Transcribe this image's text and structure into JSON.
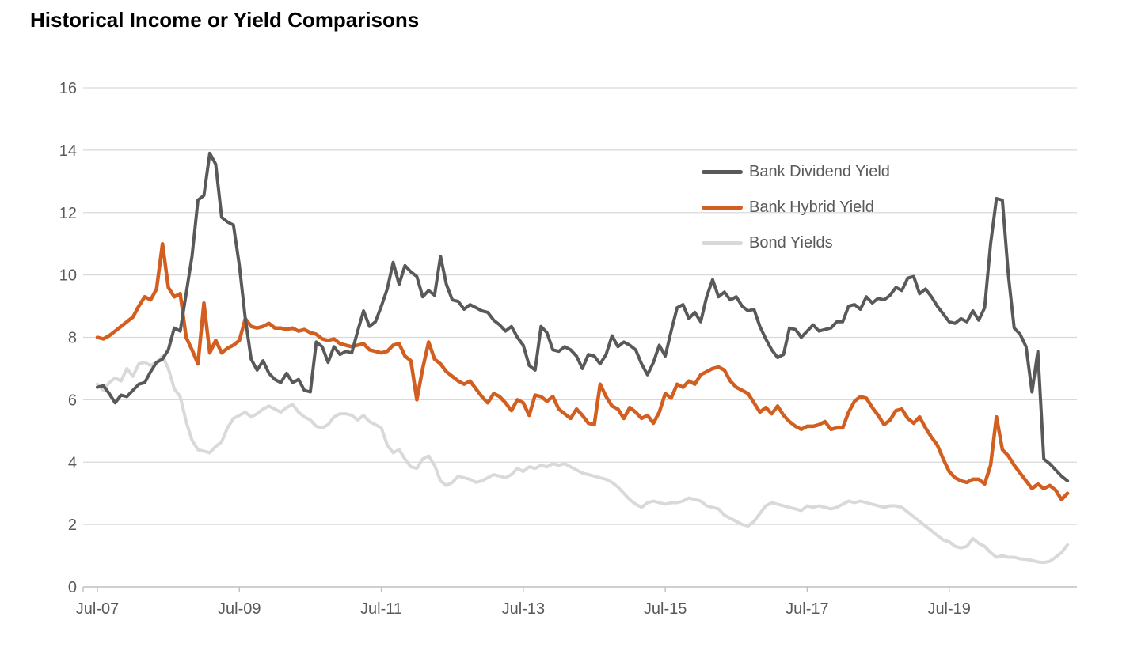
{
  "title": "Historical Income or Yield Comparisons",
  "chart_data": {
    "type": "line",
    "title": "Historical Income or Yield Comparisons",
    "xlabel": "",
    "ylabel": "",
    "x_axis": {
      "tick_labels": [
        "Jul-07",
        "Jul-09",
        "Jul-11",
        "Jul-13",
        "Jul-15",
        "Jul-17",
        "Jul-19"
      ],
      "start": "Jul-2007",
      "end": "Mar-2021",
      "frequency": "monthly"
    },
    "y_axis": {
      "min": 0,
      "max": 16,
      "tick_step": 2,
      "tick_labels": [
        "0",
        "2",
        "4",
        "6",
        "8",
        "10",
        "12",
        "14",
        "16"
      ]
    },
    "grid": "horizontal",
    "legend_position": "upper-right",
    "series": [
      {
        "name": "Bank Dividend Yield",
        "color": "#595959",
        "values": [
          6.4,
          6.45,
          6.2,
          5.9,
          6.15,
          6.1,
          6.3,
          6.5,
          6.55,
          6.9,
          7.2,
          7.3,
          7.6,
          8.3,
          8.2,
          9.4,
          10.6,
          12.4,
          12.55,
          13.9,
          13.55,
          11.85,
          11.7,
          11.6,
          10.3,
          8.6,
          7.3,
          6.95,
          7.25,
          6.85,
          6.65,
          6.55,
          6.85,
          6.55,
          6.65,
          6.3,
          6.25,
          7.85,
          7.7,
          7.2,
          7.7,
          7.45,
          7.55,
          7.5,
          8.2,
          8.85,
          8.35,
          8.5,
          9.0,
          9.55,
          10.4,
          9.7,
          10.3,
          10.1,
          9.95,
          9.3,
          9.5,
          9.35,
          10.6,
          9.7,
          9.2,
          9.15,
          8.9,
          9.05,
          8.95,
          8.85,
          8.8,
          8.55,
          8.4,
          8.2,
          8.35,
          8.0,
          7.75,
          7.1,
          6.95,
          8.35,
          8.15,
          7.6,
          7.55,
          7.7,
          7.6,
          7.4,
          7.0,
          7.45,
          7.4,
          7.15,
          7.45,
          8.05,
          7.7,
          7.85,
          7.75,
          7.6,
          7.15,
          6.8,
          7.2,
          7.75,
          7.4,
          8.2,
          8.95,
          9.05,
          8.6,
          8.8,
          8.5,
          9.3,
          9.85,
          9.3,
          9.45,
          9.2,
          9.3,
          9.0,
          8.85,
          8.9,
          8.35,
          7.95,
          7.6,
          7.35,
          7.45,
          8.3,
          8.25,
          8.0,
          8.2,
          8.4,
          8.2,
          8.25,
          8.3,
          8.5,
          8.5,
          9.0,
          9.05,
          8.9,
          9.3,
          9.1,
          9.25,
          9.2,
          9.35,
          9.6,
          9.5,
          9.9,
          9.95,
          9.4,
          9.55,
          9.3,
          9.0,
          8.75,
          8.5,
          8.45,
          8.6,
          8.5,
          8.85,
          8.55,
          8.95,
          11.0,
          12.45,
          12.4,
          10.0,
          8.3,
          8.1,
          7.7,
          6.25,
          7.55,
          4.1,
          3.95,
          3.75,
          3.55,
          3.4
        ]
      },
      {
        "name": "Bank Hybrid Yield",
        "color": "#D25E1F",
        "values": [
          8.0,
          7.95,
          8.05,
          8.2,
          8.35,
          8.5,
          8.65,
          9.0,
          9.3,
          9.2,
          9.55,
          11.0,
          9.6,
          9.3,
          9.4,
          8.0,
          7.6,
          7.15,
          9.1,
          7.5,
          7.9,
          7.5,
          7.65,
          7.75,
          7.9,
          8.6,
          8.35,
          8.3,
          8.35,
          8.45,
          8.3,
          8.3,
          8.25,
          8.3,
          8.2,
          8.25,
          8.15,
          8.1,
          7.95,
          7.9,
          7.95,
          7.8,
          7.75,
          7.7,
          7.75,
          7.8,
          7.6,
          7.55,
          7.5,
          7.55,
          7.75,
          7.8,
          7.4,
          7.25,
          6.0,
          7.0,
          7.85,
          7.3,
          7.15,
          6.9,
          6.75,
          6.6,
          6.5,
          6.6,
          6.35,
          6.1,
          5.9,
          6.2,
          6.1,
          5.9,
          5.65,
          6.0,
          5.9,
          5.5,
          6.15,
          6.1,
          5.95,
          6.1,
          5.7,
          5.55,
          5.4,
          5.7,
          5.5,
          5.25,
          5.2,
          6.5,
          6.1,
          5.8,
          5.7,
          5.4,
          5.75,
          5.6,
          5.4,
          5.5,
          5.25,
          5.6,
          6.2,
          6.05,
          6.5,
          6.4,
          6.6,
          6.5,
          6.8,
          6.9,
          7.0,
          7.05,
          6.95,
          6.6,
          6.4,
          6.3,
          6.2,
          5.9,
          5.6,
          5.75,
          5.55,
          5.8,
          5.5,
          5.3,
          5.15,
          5.05,
          5.15,
          5.15,
          5.2,
          5.3,
          5.05,
          5.1,
          5.1,
          5.6,
          5.95,
          6.1,
          6.05,
          5.75,
          5.5,
          5.2,
          5.35,
          5.65,
          5.7,
          5.4,
          5.25,
          5.45,
          5.1,
          4.8,
          4.55,
          4.1,
          3.7,
          3.5,
          3.4,
          3.35,
          3.45,
          3.45,
          3.3,
          3.9,
          5.45,
          4.4,
          4.2,
          3.9,
          3.65,
          3.4,
          3.15,
          3.3,
          3.15,
          3.25,
          3.1,
          2.8,
          3.0
        ]
      },
      {
        "name": "Bond Yields",
        "color": "#D9D9D9",
        "values": [
          6.5,
          6.3,
          6.55,
          6.7,
          6.6,
          7.0,
          6.75,
          7.15,
          7.2,
          7.1,
          7.2,
          7.4,
          7.0,
          6.35,
          6.1,
          5.3,
          4.7,
          4.4,
          4.35,
          4.3,
          4.5,
          4.65,
          5.1,
          5.4,
          5.5,
          5.6,
          5.45,
          5.55,
          5.7,
          5.8,
          5.7,
          5.6,
          5.75,
          5.85,
          5.6,
          5.45,
          5.35,
          5.15,
          5.1,
          5.2,
          5.45,
          5.55,
          5.55,
          5.5,
          5.35,
          5.5,
          5.3,
          5.2,
          5.1,
          4.55,
          4.3,
          4.4,
          4.1,
          3.85,
          3.8,
          4.1,
          4.2,
          3.9,
          3.4,
          3.25,
          3.35,
          3.55,
          3.5,
          3.45,
          3.35,
          3.4,
          3.5,
          3.6,
          3.55,
          3.5,
          3.6,
          3.8,
          3.7,
          3.85,
          3.8,
          3.9,
          3.85,
          3.95,
          3.9,
          3.95,
          3.85,
          3.75,
          3.65,
          3.6,
          3.55,
          3.5,
          3.45,
          3.35,
          3.2,
          3.0,
          2.8,
          2.65,
          2.55,
          2.7,
          2.75,
          2.7,
          2.65,
          2.7,
          2.7,
          2.75,
          2.85,
          2.8,
          2.75,
          2.6,
          2.55,
          2.5,
          2.3,
          2.2,
          2.1,
          2.0,
          1.95,
          2.1,
          2.35,
          2.6,
          2.7,
          2.65,
          2.6,
          2.55,
          2.5,
          2.45,
          2.6,
          2.55,
          2.6,
          2.55,
          2.5,
          2.55,
          2.65,
          2.75,
          2.7,
          2.75,
          2.7,
          2.65,
          2.6,
          2.55,
          2.6,
          2.6,
          2.55,
          2.4,
          2.25,
          2.1,
          1.95,
          1.8,
          1.65,
          1.5,
          1.45,
          1.3,
          1.25,
          1.3,
          1.55,
          1.4,
          1.3,
          1.1,
          0.95,
          1.0,
          0.95,
          0.95,
          0.9,
          0.88,
          0.85,
          0.8,
          0.78,
          0.82,
          0.95,
          1.1,
          1.35
        ]
      }
    ]
  },
  "styles": {
    "gridline_color": "#D9D9D9",
    "axis_line_color": "#BFBFBF",
    "axis_label_color": "#595959",
    "title_color": "#000000",
    "background": "#FFFFFF"
  }
}
